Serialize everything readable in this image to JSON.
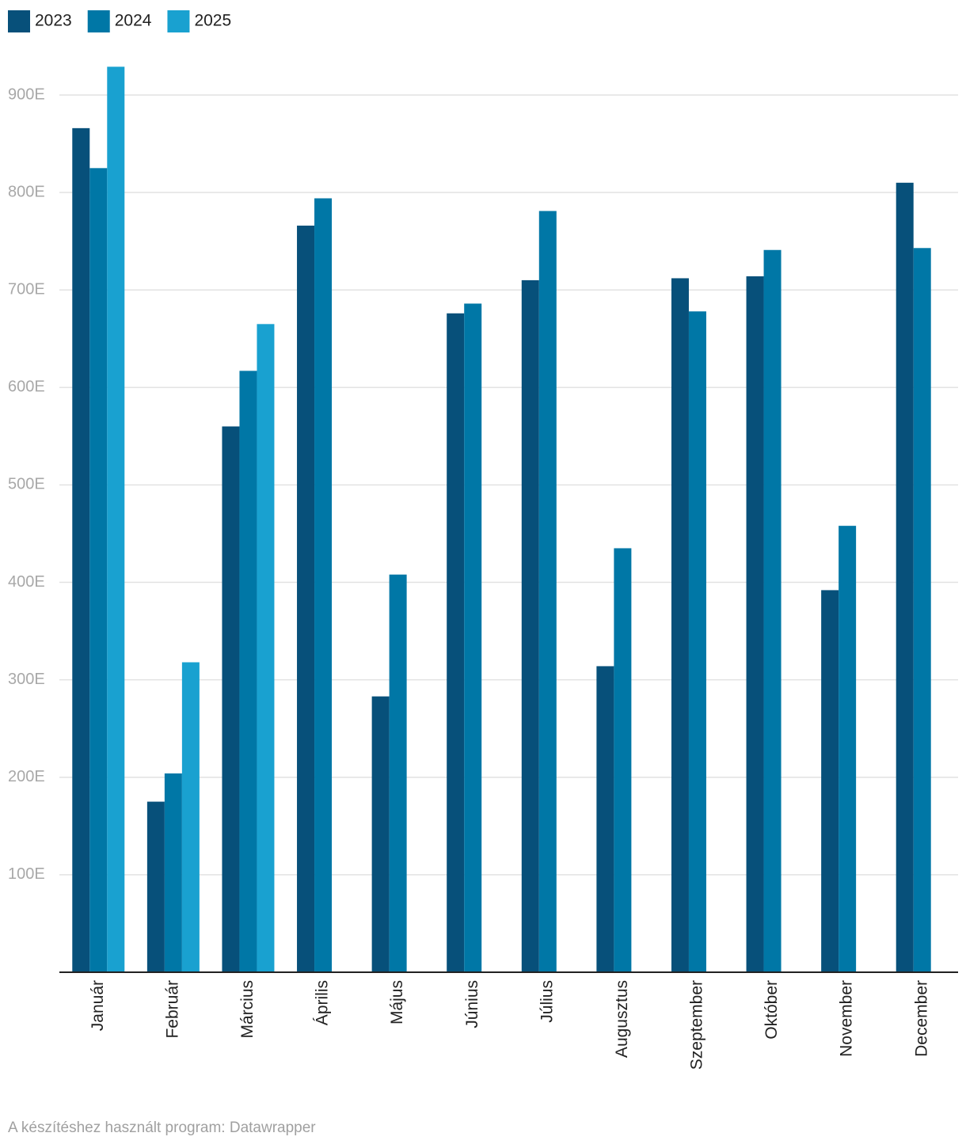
{
  "chart_data": {
    "type": "bar",
    "categories": [
      "Január",
      "Február",
      "Március",
      "Április",
      "Május",
      "Június",
      "Július",
      "Augusztus",
      "Szeptember",
      "Október",
      "November",
      "December"
    ],
    "series": [
      {
        "name": "2023",
        "color": "#07507a",
        "values": [
          866,
          175,
          560,
          766,
          283,
          676,
          710,
          314,
          712,
          714,
          392,
          810
        ]
      },
      {
        "name": "2024",
        "color": "#0077a6",
        "values": [
          825,
          204,
          617,
          794,
          408,
          686,
          781,
          435,
          678,
          741,
          458,
          743
        ]
      },
      {
        "name": "2025",
        "color": "#19a1d0",
        "values": [
          929,
          318,
          665,
          null,
          null,
          null,
          null,
          null,
          null,
          null,
          null,
          null
        ]
      }
    ],
    "ylim": [
      0,
      935
    ],
    "yticks": [
      {
        "value": 100,
        "label": "100E"
      },
      {
        "value": 200,
        "label": "200E"
      },
      {
        "value": 300,
        "label": "300E"
      },
      {
        "value": 400,
        "label": "400E"
      },
      {
        "value": 500,
        "label": "500E"
      },
      {
        "value": 600,
        "label": "600E"
      },
      {
        "value": 700,
        "label": "700E"
      },
      {
        "value": 800,
        "label": "800E"
      },
      {
        "value": 900,
        "label": "900E"
      }
    ],
    "grid": true,
    "legend": "top-left",
    "footer": "A készítéshez használt program: Datawrapper"
  }
}
